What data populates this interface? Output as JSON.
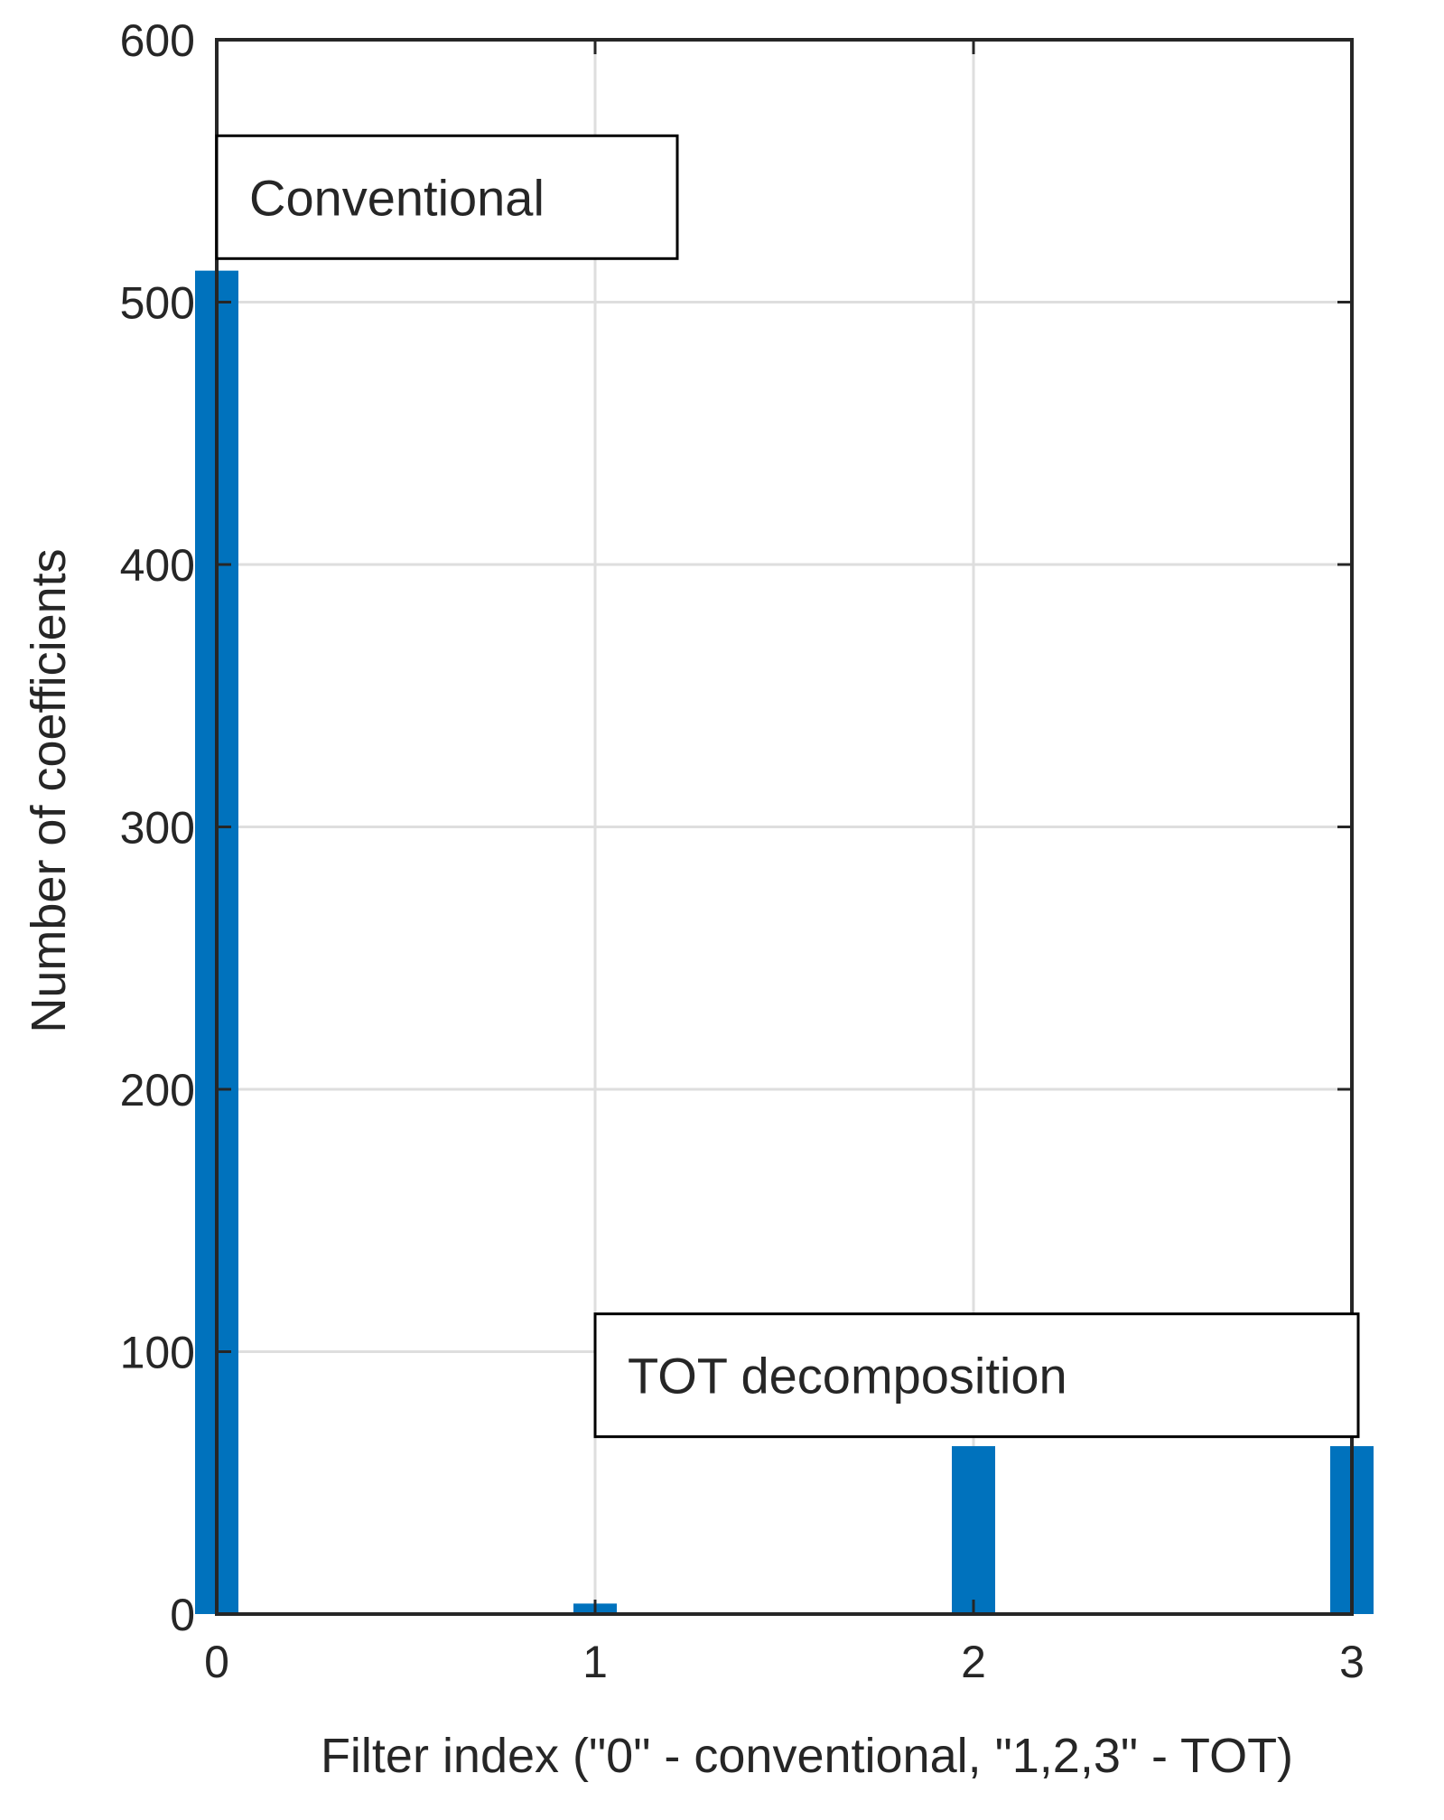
{
  "chart_data": {
    "type": "bar",
    "title": "",
    "xlabel": "Filter index (\"0\" - conventional, \"1,2,3\" - TOT)",
    "ylabel": "Number of coefficients",
    "categories": [
      "0",
      "1",
      "2",
      "3"
    ],
    "x": [
      0,
      1,
      2,
      3
    ],
    "values": [
      512,
      4,
      64,
      64
    ],
    "xlim": [
      0,
      3
    ],
    "ylim": [
      0,
      600
    ],
    "xticks": [
      0,
      1,
      2,
      3
    ],
    "yticks": [
      0,
      100,
      200,
      300,
      400,
      500,
      600
    ],
    "grid": true,
    "bar_color": "#0072BD",
    "annotations": [
      {
        "text": "Conventional",
        "x": 0,
        "y": 540
      },
      {
        "text": "TOT decomposition",
        "x": 1,
        "y": 91
      }
    ]
  },
  "colors": {
    "bar": "#0072BD",
    "axis": "#262626",
    "grid": "#dedede",
    "background": "#ffffff"
  }
}
